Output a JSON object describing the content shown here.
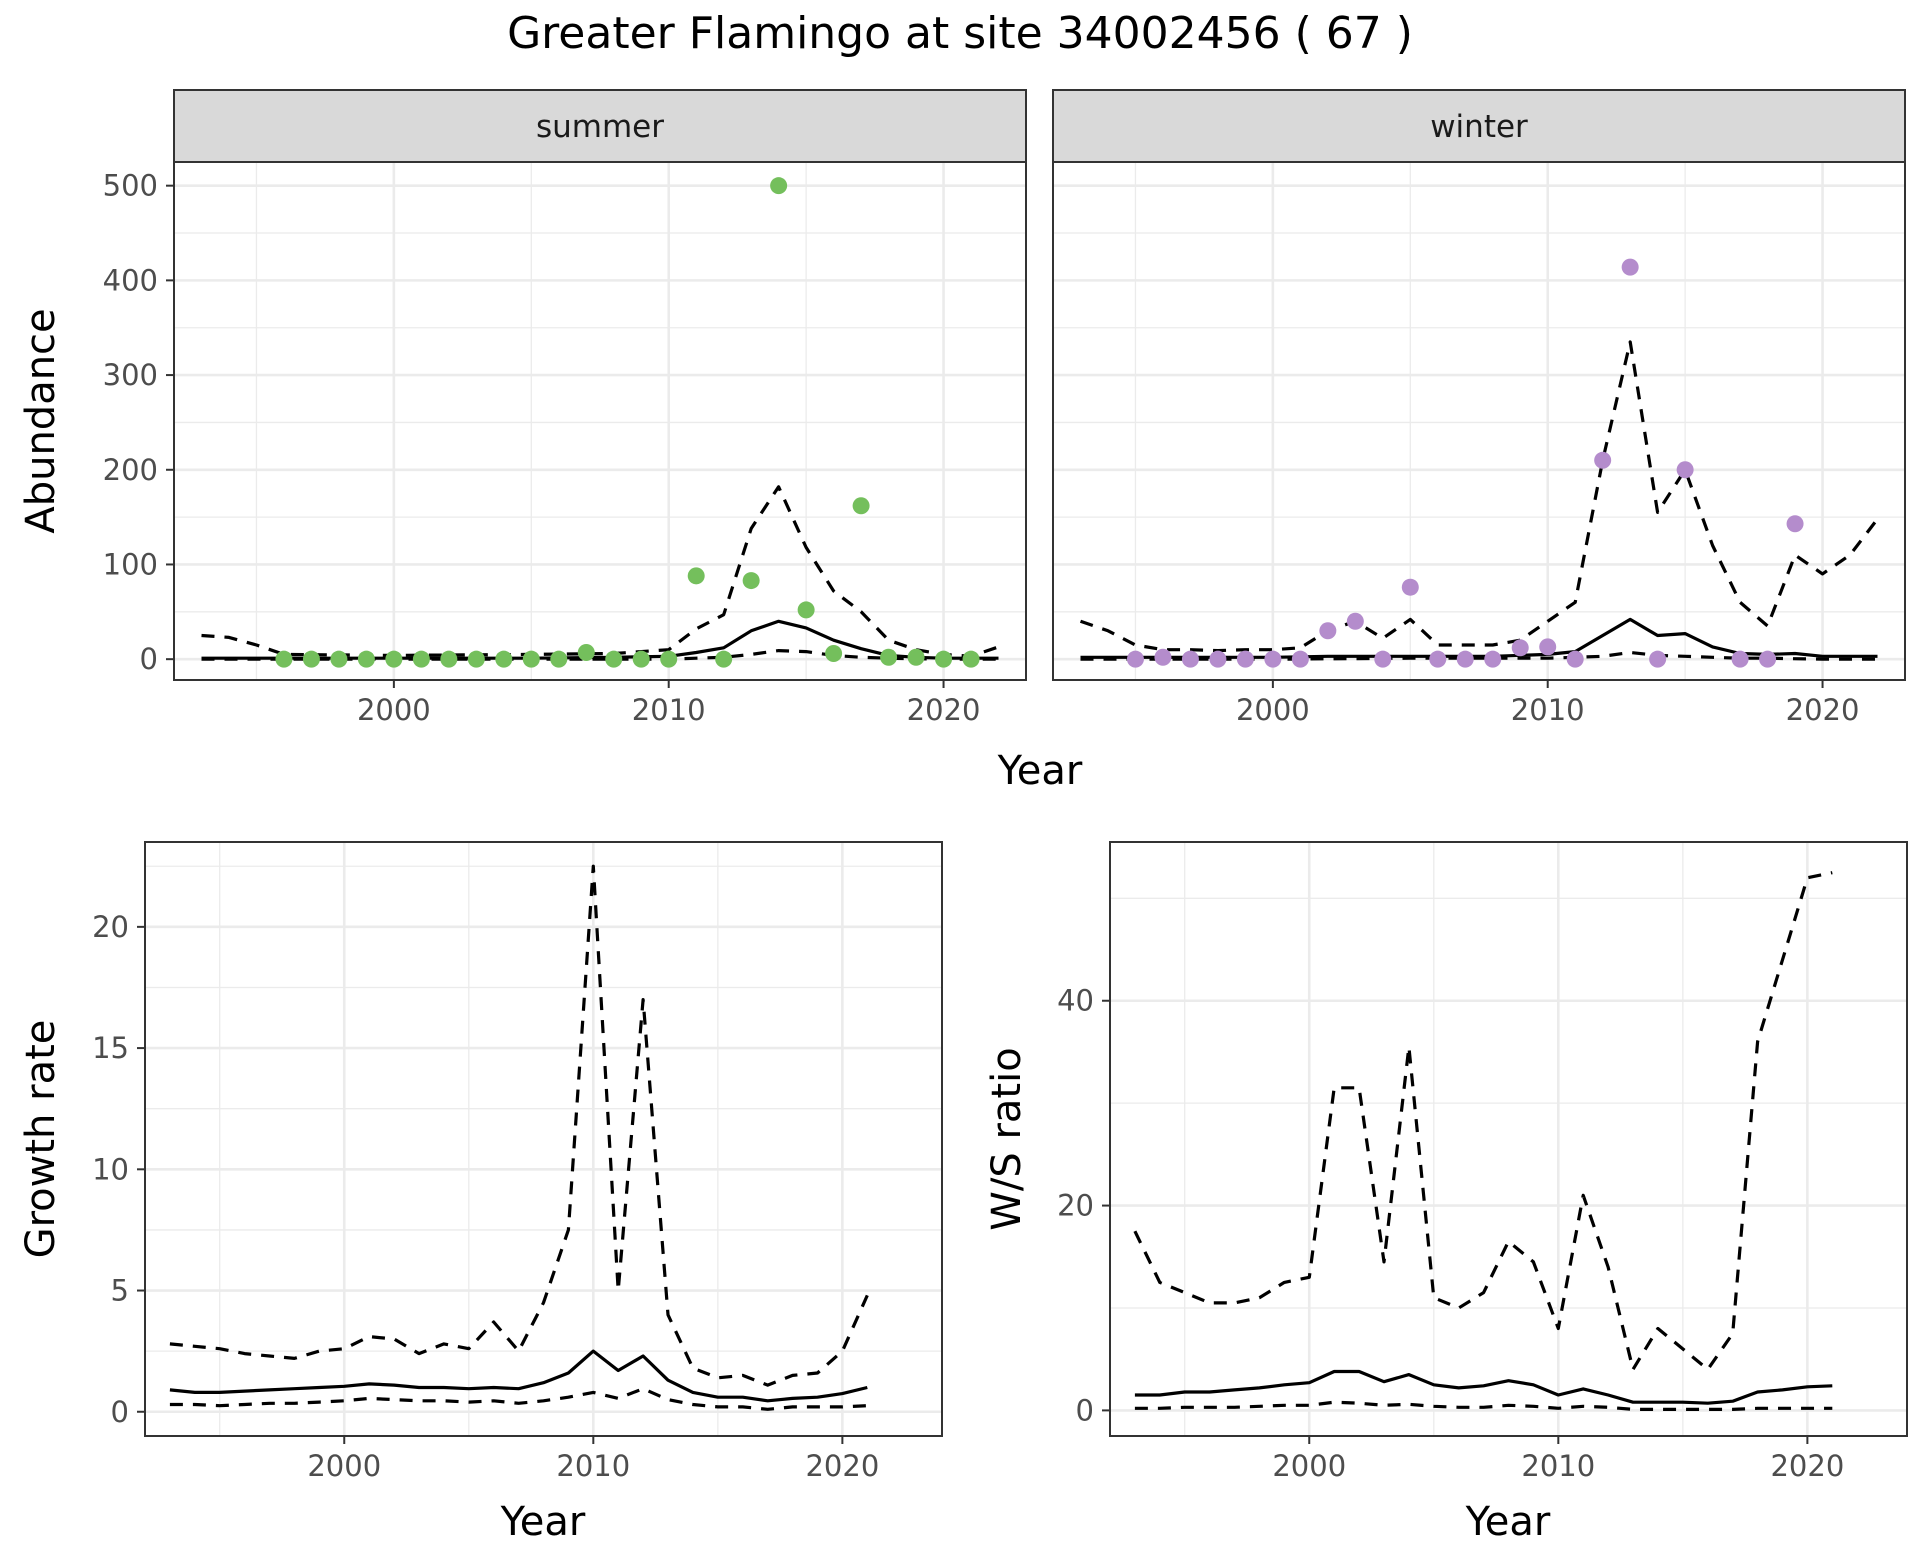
{
  "figure": {
    "title": "Greater Flamingo at site 34002456 ( 67 )"
  },
  "chart_data": [
    {
      "type": "scatter",
      "panel": "summer",
      "strip_label": "summer",
      "xlabel": "Year",
      "ylabel": "Abundance",
      "xlim": [
        1992,
        2023
      ],
      "ylim": [
        -22,
        525
      ],
      "xticks": [
        2000,
        2010,
        2020
      ],
      "yticks": [
        0,
        100,
        200,
        300,
        400,
        500
      ],
      "point_color": "#74bf5c",
      "points": {
        "x": [
          1996,
          1997,
          1998,
          1999,
          2000,
          2001,
          2002,
          2003,
          2004,
          2005,
          2006,
          2007,
          2008,
          2009,
          2010,
          2011,
          2012,
          2013,
          2014,
          2015,
          2016,
          2017,
          2018,
          2019,
          2020,
          2021
        ],
        "y": [
          0,
          0,
          0,
          0,
          0,
          0,
          0,
          0,
          0,
          0,
          0,
          7,
          0,
          0,
          0,
          88,
          0,
          83,
          500,
          52,
          6,
          162,
          2,
          2,
          0,
          0
        ]
      },
      "lines": [
        {
          "style": "solid",
          "x": [
            1993,
            1995,
            2000,
            2005,
            2008,
            2010,
            2011,
            2012,
            2013,
            2014,
            2015,
            2016,
            2017,
            2018,
            2019,
            2020,
            2021,
            2022
          ],
          "y": [
            1,
            1,
            1,
            1,
            2,
            3,
            7,
            12,
            30,
            40,
            33,
            20,
            11,
            4,
            2,
            1,
            1,
            1
          ]
        },
        {
          "style": "dashed",
          "x": [
            1993,
            1994,
            1995,
            1996,
            2000,
            2005,
            2008,
            2010,
            2011,
            2012,
            2013,
            2014,
            2015,
            2016,
            2017,
            2018,
            2019,
            2020,
            2021,
            2022
          ],
          "y": [
            25,
            23,
            15,
            5,
            4,
            5,
            6,
            10,
            32,
            47,
            138,
            182,
            118,
            72,
            50,
            20,
            10,
            5,
            3,
            13
          ]
        },
        {
          "style": "dashed",
          "x": [
            1993,
            2000,
            2005,
            2010,
            2011,
            2012,
            2013,
            2014,
            2015,
            2016,
            2017,
            2018,
            2020,
            2022
          ],
          "y": [
            0,
            0,
            0,
            0,
            1,
            2,
            5,
            9,
            8,
            4,
            2,
            1,
            0,
            0
          ]
        }
      ]
    },
    {
      "type": "scatter",
      "panel": "winter",
      "strip_label": "winter",
      "xlabel": "Year",
      "ylabel": "Abundance",
      "xlim": [
        1992,
        2023
      ],
      "ylim": [
        -22,
        525
      ],
      "xticks": [
        2000,
        2010,
        2020
      ],
      "yticks": [
        0,
        100,
        200,
        300,
        400,
        500
      ],
      "point_color": "#b48ccc",
      "points": {
        "x": [
          1995,
          1996,
          1997,
          1998,
          1999,
          2000,
          2001,
          2002,
          2003,
          2004,
          2005,
          2006,
          2007,
          2008,
          2009,
          2010,
          2011,
          2012,
          2013,
          2014,
          2015,
          2017,
          2018,
          2019
        ],
        "y": [
          0,
          2,
          0,
          0,
          0,
          0,
          0,
          30,
          40,
          0,
          76,
          0,
          0,
          0,
          12,
          13,
          0,
          210,
          414,
          0,
          200,
          0,
          0,
          143
        ]
      },
      "lines": [
        {
          "style": "solid",
          "x": [
            1993,
            1995,
            2000,
            2002,
            2003,
            2005,
            2008,
            2010,
            2011,
            2012,
            2013,
            2014,
            2015,
            2016,
            2017,
            2018,
            2019,
            2020,
            2021,
            2022
          ],
          "y": [
            2,
            2,
            2,
            3,
            3,
            3,
            3,
            5,
            8,
            25,
            42,
            25,
            27,
            13,
            6,
            5,
            6,
            3,
            3,
            3
          ]
        },
        {
          "style": "dashed",
          "x": [
            1993,
            1994,
            1995,
            1996,
            1997,
            1998,
            1999,
            2000,
            2001,
            2002,
            2003,
            2004,
            2005,
            2006,
            2007,
            2008,
            2009,
            2010,
            2011,
            2012,
            2013,
            2014,
            2015,
            2016,
            2017,
            2018,
            2019,
            2020,
            2021,
            2022
          ],
          "y": [
            40,
            30,
            15,
            10,
            10,
            9,
            10,
            10,
            12,
            30,
            40,
            22,
            42,
            15,
            15,
            15,
            20,
            40,
            60,
            210,
            335,
            155,
            200,
            120,
            60,
            35,
            110,
            90,
            110,
            148
          ]
        },
        {
          "style": "dashed",
          "x": [
            1993,
            2000,
            2005,
            2010,
            2011,
            2012,
            2013,
            2014,
            2015,
            2016,
            2017,
            2018,
            2020,
            2022
          ],
          "y": [
            0,
            0,
            1,
            1,
            2,
            3,
            7,
            4,
            3,
            2,
            1,
            1,
            0,
            0
          ]
        }
      ]
    },
    {
      "type": "line",
      "panel": "growth-rate",
      "xlabel": "Year",
      "ylabel": "Growth rate",
      "xlim": [
        1992,
        2024
      ],
      "ylim": [
        -1,
        23.5
      ],
      "xticks": [
        2000,
        2010,
        2020
      ],
      "yticks": [
        0,
        5,
        10,
        15,
        20
      ],
      "lines": [
        {
          "style": "solid",
          "x": [
            1993,
            1994,
            1995,
            1996,
            1997,
            1998,
            1999,
            2000,
            2001,
            2002,
            2003,
            2004,
            2005,
            2006,
            2007,
            2008,
            2009,
            2010,
            2011,
            2012,
            2013,
            2014,
            2015,
            2016,
            2017,
            2018,
            2019,
            2020,
            2021
          ],
          "y": [
            0.9,
            0.8,
            0.8,
            0.85,
            0.9,
            0.95,
            1.0,
            1.05,
            1.15,
            1.1,
            1.0,
            1.0,
            0.95,
            1.0,
            0.95,
            1.2,
            1.6,
            2.5,
            1.7,
            2.3,
            1.3,
            0.8,
            0.6,
            0.6,
            0.45,
            0.55,
            0.6,
            0.75,
            1.0
          ]
        },
        {
          "style": "dashed",
          "x": [
            1993,
            1994,
            1995,
            1996,
            1997,
            1998,
            1999,
            2000,
            2001,
            2002,
            2003,
            2004,
            2005,
            2006,
            2007,
            2008,
            2009,
            2010,
            2011,
            2012,
            2013,
            2014,
            2015,
            2016,
            2017,
            2018,
            2019,
            2020,
            2021
          ],
          "y": [
            2.8,
            2.7,
            2.6,
            2.4,
            2.3,
            2.2,
            2.5,
            2.6,
            3.1,
            3.0,
            2.4,
            2.8,
            2.6,
            3.7,
            2.5,
            4.5,
            7.5,
            22.5,
            5.0,
            17.0,
            4.0,
            1.8,
            1.4,
            1.5,
            1.1,
            1.5,
            1.6,
            2.5,
            4.8
          ]
        },
        {
          "style": "dashed",
          "x": [
            1993,
            1994,
            1995,
            1996,
            1997,
            1998,
            1999,
            2000,
            2001,
            2002,
            2003,
            2004,
            2005,
            2006,
            2007,
            2008,
            2009,
            2010,
            2011,
            2012,
            2013,
            2014,
            2015,
            2016,
            2017,
            2018,
            2019,
            2020,
            2021
          ],
          "y": [
            0.3,
            0.3,
            0.25,
            0.3,
            0.35,
            0.35,
            0.4,
            0.45,
            0.55,
            0.5,
            0.45,
            0.45,
            0.4,
            0.45,
            0.35,
            0.45,
            0.6,
            0.8,
            0.55,
            0.95,
            0.5,
            0.3,
            0.2,
            0.2,
            0.1,
            0.2,
            0.2,
            0.2,
            0.25
          ]
        }
      ]
    },
    {
      "type": "line",
      "panel": "ws-ratio",
      "xlabel": "Year",
      "ylabel": "W/S ratio",
      "xlim": [
        1992,
        2024
      ],
      "ylim": [
        -2.5,
        55.5
      ],
      "xticks": [
        2000,
        2010,
        2020
      ],
      "yticks": [
        0,
        20,
        40
      ],
      "lines": [
        {
          "style": "solid",
          "x": [
            1993,
            1994,
            1995,
            1996,
            1997,
            1998,
            1999,
            2000,
            2001,
            2002,
            2003,
            2004,
            2005,
            2006,
            2007,
            2008,
            2009,
            2010,
            2011,
            2012,
            2013,
            2014,
            2015,
            2016,
            2017,
            2018,
            2019,
            2020,
            2021
          ],
          "y": [
            1.5,
            1.5,
            1.8,
            1.8,
            2.0,
            2.2,
            2.5,
            2.7,
            3.8,
            3.8,
            2.8,
            3.5,
            2.5,
            2.2,
            2.4,
            2.9,
            2.5,
            1.5,
            2.1,
            1.5,
            0.8,
            0.8,
            0.8,
            0.7,
            0.9,
            1.8,
            2.0,
            2.3,
            2.4
          ]
        },
        {
          "style": "dashed",
          "x": [
            1993,
            1994,
            1995,
            1996,
            1997,
            1998,
            1999,
            2000,
            2001,
            2002,
            2003,
            2004,
            2005,
            2006,
            2007,
            2008,
            2009,
            2010,
            2011,
            2012,
            2013,
            2014,
            2015,
            2016,
            2017,
            2018,
            2019,
            2020,
            2021
          ],
          "y": [
            17.5,
            12.5,
            11.5,
            10.5,
            10.5,
            11.0,
            12.5,
            13.0,
            31.5,
            31.5,
            14.5,
            35.5,
            11.0,
            10.0,
            11.5,
            16.5,
            14.5,
            8.0,
            21.0,
            14.0,
            4.0,
            8.0,
            6.0,
            4.0,
            7.5,
            36.0,
            44.0,
            52.0,
            52.5
          ]
        },
        {
          "style": "dashed",
          "x": [
            1993,
            1994,
            1995,
            1996,
            1997,
            1998,
            1999,
            2000,
            2001,
            2002,
            2003,
            2004,
            2005,
            2006,
            2007,
            2008,
            2009,
            2010,
            2011,
            2012,
            2013,
            2014,
            2015,
            2016,
            2017,
            2018,
            2019,
            2020,
            2021
          ],
          "y": [
            0.2,
            0.2,
            0.3,
            0.3,
            0.3,
            0.4,
            0.5,
            0.5,
            0.8,
            0.7,
            0.5,
            0.6,
            0.4,
            0.3,
            0.3,
            0.5,
            0.4,
            0.2,
            0.4,
            0.3,
            0.1,
            0.1,
            0.1,
            0.1,
            0.1,
            0.2,
            0.2,
            0.2,
            0.2
          ]
        }
      ]
    }
  ]
}
